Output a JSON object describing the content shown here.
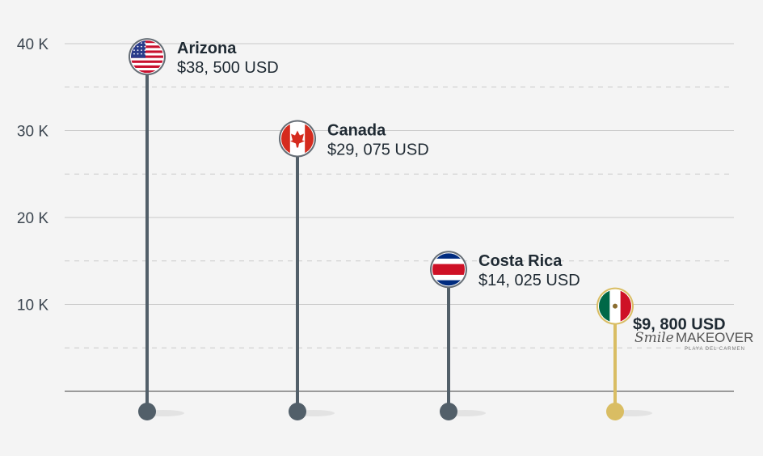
{
  "chart_data": {
    "type": "lollipop",
    "categories": [
      "Arizona",
      "Canada",
      "Costa Rica",
      "Mexico"
    ],
    "values": [
      38500,
      29075,
      14025,
      9800
    ],
    "value_labels": [
      "$38, 500 USD",
      "$29, 075 USD",
      "$14, 025 USD",
      "$9, 800 USD"
    ],
    "point_labels": [
      "Arizona",
      "Canada",
      "Costa Rica",
      ""
    ],
    "flags": [
      "usa-flag",
      "canada-flag",
      "costa-rica-flag",
      "mexico-flag"
    ],
    "highlight_index": 3,
    "y_ticks": [
      10000,
      20000,
      30000,
      40000
    ],
    "y_tick_labels": [
      "10 K",
      "20 K",
      "30 K",
      "40 K"
    ],
    "ylim": [
      0,
      40000
    ],
    "grid": true,
    "colors": {
      "stem": "#525f69",
      "highlight": "#d9bd63",
      "grid": "#c9c9c9",
      "axis": "#9a9a9a"
    }
  },
  "brand": {
    "script": "Smile",
    "main": "MAKEOVER",
    "sub": "PLAYA DEL CARMEN"
  }
}
